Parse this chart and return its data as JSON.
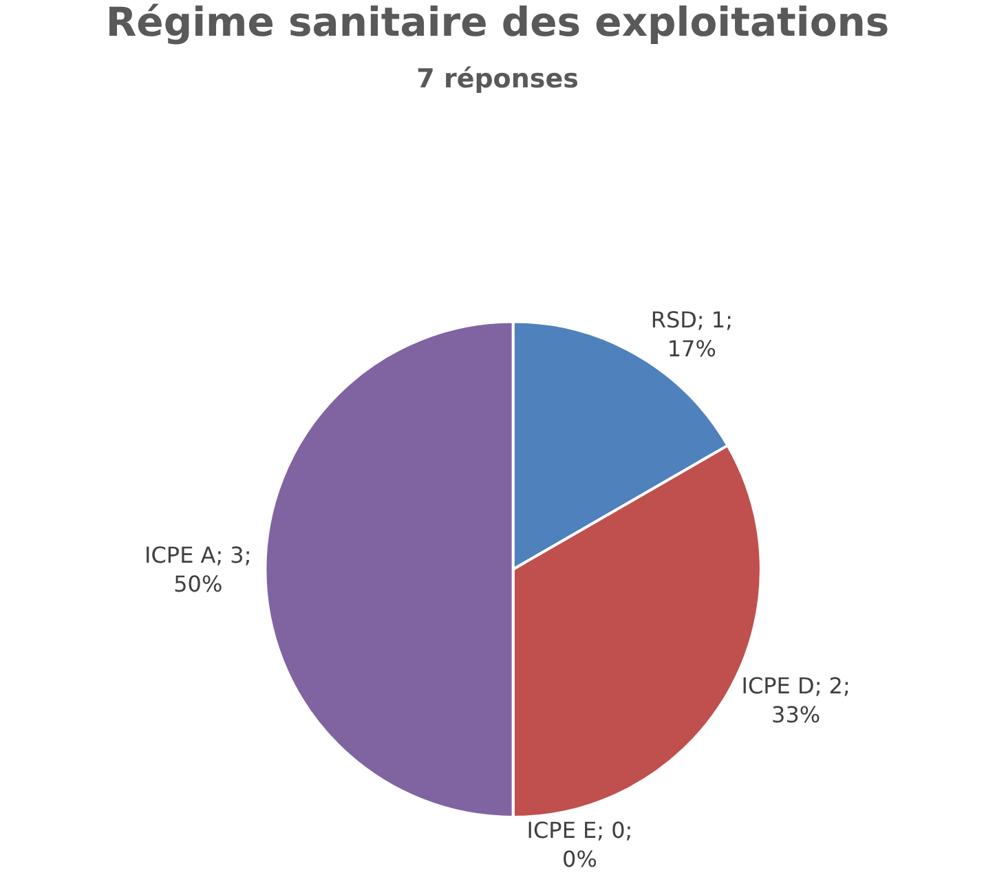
{
  "chart_data": {
    "type": "pie",
    "title": "Régime sanitaire des exploitations",
    "subtitle": "7 réponses",
    "categories": [
      "RSD",
      "ICPE D",
      "ICPE E",
      "ICPE A"
    ],
    "values": [
      1,
      2,
      0,
      3
    ],
    "colors": [
      "#4f81bd",
      "#c0504d",
      "#9bbb59",
      "#8064a2"
    ],
    "value_labels": [
      "; 1;\n17%",
      "; 2;\n33%",
      "; 0;\n0%",
      "; 3;\n50%"
    ],
    "legend": false
  }
}
